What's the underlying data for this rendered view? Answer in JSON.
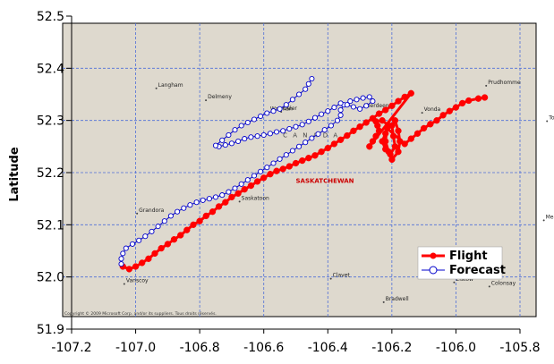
{
  "chart_data": {
    "type": "line",
    "title": "",
    "xlabel": "",
    "ylabel": "Latitude",
    "xlim": [
      -107.2,
      -105.8
    ],
    "ylim": [
      51.9,
      52.5
    ],
    "x_ticks": [
      "-107.2",
      "-107.0",
      "-106.8",
      "-106.6",
      "-106.4",
      "-106.2",
      "-106.0",
      "-105.8"
    ],
    "y_ticks": [
      "51.9",
      "52.0",
      "52.1",
      "52.2",
      "52.3",
      "52.4",
      "52.5"
    ],
    "x_tick_values": [
      -107.2,
      -107.0,
      -106.8,
      -106.6,
      -106.4,
      -106.2,
      -106.0,
      -105.8
    ],
    "y_tick_values": [
      51.9,
      52.0,
      52.1,
      52.2,
      52.3,
      52.4,
      52.5
    ],
    "grid": true,
    "legend_position": "bottom-right",
    "background": "map",
    "series": [
      {
        "name": "Flight",
        "color": "#ff0000",
        "marker": "filled-circle",
        "points": [
          [
            -107.04,
            52.02
          ],
          [
            -107.02,
            52.015
          ],
          [
            -107.0,
            52.02
          ],
          [
            -106.98,
            52.027
          ],
          [
            -106.96,
            52.035
          ],
          [
            -106.94,
            52.045
          ],
          [
            -106.92,
            52.055
          ],
          [
            -106.9,
            52.063
          ],
          [
            -106.88,
            52.072
          ],
          [
            -106.86,
            52.08
          ],
          [
            -106.84,
            52.09
          ],
          [
            -106.82,
            52.1
          ],
          [
            -106.8,
            52.107
          ],
          [
            -106.78,
            52.117
          ],
          [
            -106.76,
            52.125
          ],
          [
            -106.74,
            52.135
          ],
          [
            -106.72,
            52.143
          ],
          [
            -106.7,
            52.153
          ],
          [
            -106.68,
            52.16
          ],
          [
            -106.66,
            52.168
          ],
          [
            -106.64,
            52.175
          ],
          [
            -106.62,
            52.183
          ],
          [
            -106.6,
            52.19
          ],
          [
            -106.58,
            52.197
          ],
          [
            -106.56,
            52.203
          ],
          [
            -106.54,
            52.207
          ],
          [
            -106.52,
            52.212
          ],
          [
            -106.5,
            52.218
          ],
          [
            -106.48,
            52.223
          ],
          [
            -106.46,
            52.228
          ],
          [
            -106.44,
            52.233
          ],
          [
            -106.42,
            52.24
          ],
          [
            -106.4,
            52.247
          ],
          [
            -106.38,
            52.255
          ],
          [
            -106.36,
            52.263
          ],
          [
            -106.34,
            52.271
          ],
          [
            -106.32,
            52.28
          ],
          [
            -106.3,
            52.288
          ],
          [
            -106.28,
            52.296
          ],
          [
            -106.26,
            52.304
          ],
          [
            -106.24,
            52.313
          ],
          [
            -106.22,
            52.32
          ],
          [
            -106.2,
            52.328
          ],
          [
            -106.18,
            52.337
          ],
          [
            -106.16,
            52.345
          ],
          [
            -106.14,
            52.352
          ],
          [
            -106.27,
            52.25
          ],
          [
            -106.26,
            52.26
          ],
          [
            -106.25,
            52.27
          ],
          [
            -106.24,
            52.28
          ],
          [
            -106.245,
            52.29
          ],
          [
            -106.25,
            52.298
          ],
          [
            -106.23,
            52.3
          ],
          [
            -106.21,
            52.29
          ],
          [
            -106.22,
            52.275
          ],
          [
            -106.23,
            52.26
          ],
          [
            -106.22,
            52.245
          ],
          [
            -106.205,
            52.235
          ],
          [
            -106.19,
            52.25
          ],
          [
            -106.195,
            52.27
          ],
          [
            -106.2,
            52.29
          ],
          [
            -106.19,
            52.3
          ],
          [
            -106.18,
            52.28
          ],
          [
            -106.175,
            52.26
          ],
          [
            -106.18,
            52.24
          ],
          [
            -106.2,
            52.225
          ],
          [
            -106.21,
            52.24
          ],
          [
            -106.22,
            52.26
          ],
          [
            -106.215,
            52.285
          ],
          [
            -106.16,
            52.255
          ],
          [
            -106.14,
            52.265
          ],
          [
            -106.12,
            52.275
          ],
          [
            -106.1,
            52.285
          ],
          [
            -106.08,
            52.293
          ],
          [
            -106.06,
            52.3
          ],
          [
            -106.04,
            52.31
          ],
          [
            -106.02,
            52.318
          ],
          [
            -106.0,
            52.325
          ],
          [
            -105.98,
            52.333
          ],
          [
            -105.96,
            52.338
          ],
          [
            -105.93,
            52.342
          ],
          [
            -105.91,
            52.344
          ]
        ]
      },
      {
        "name": "Forecast",
        "color": "#0000cc",
        "marker": "open-circle",
        "points": [
          [
            -107.045,
            52.025
          ],
          [
            -107.045,
            52.035
          ],
          [
            -107.04,
            52.045
          ],
          [
            -107.03,
            52.055
          ],
          [
            -107.01,
            52.063
          ],
          [
            -106.99,
            52.07
          ],
          [
            -106.97,
            52.078
          ],
          [
            -106.95,
            52.087
          ],
          [
            -106.93,
            52.097
          ],
          [
            -106.91,
            52.107
          ],
          [
            -106.89,
            52.117
          ],
          [
            -106.87,
            52.125
          ],
          [
            -106.85,
            52.132
          ],
          [
            -106.83,
            52.138
          ],
          [
            -106.81,
            52.143
          ],
          [
            -106.79,
            52.147
          ],
          [
            -106.77,
            52.15
          ],
          [
            -106.75,
            52.153
          ],
          [
            -106.73,
            52.157
          ],
          [
            -106.71,
            52.163
          ],
          [
            -106.69,
            52.17
          ],
          [
            -106.67,
            52.178
          ],
          [
            -106.65,
            52.186
          ],
          [
            -106.63,
            52.194
          ],
          [
            -106.61,
            52.202
          ],
          [
            -106.59,
            52.21
          ],
          [
            -106.57,
            52.218
          ],
          [
            -106.55,
            52.226
          ],
          [
            -106.53,
            52.234
          ],
          [
            -106.51,
            52.242
          ],
          [
            -106.49,
            52.25
          ],
          [
            -106.47,
            52.258
          ],
          [
            -106.45,
            52.266
          ],
          [
            -106.43,
            52.274
          ],
          [
            -106.41,
            52.282
          ],
          [
            -106.39,
            52.29
          ],
          [
            -106.37,
            52.3
          ],
          [
            -106.36,
            52.31
          ],
          [
            -106.36,
            52.32
          ],
          [
            -106.35,
            52.33
          ],
          [
            -106.33,
            52.337
          ],
          [
            -106.31,
            52.34
          ],
          [
            -106.29,
            52.343
          ],
          [
            -106.27,
            52.345
          ],
          [
            -106.26,
            52.337
          ],
          [
            -106.28,
            52.328
          ],
          [
            -106.3,
            52.322
          ],
          [
            -106.32,
            52.326
          ],
          [
            -106.34,
            52.33
          ],
          [
            -106.36,
            52.333
          ],
          [
            -106.38,
            52.325
          ],
          [
            -106.4,
            52.318
          ],
          [
            -106.42,
            52.312
          ],
          [
            -106.44,
            52.305
          ],
          [
            -106.46,
            52.298
          ],
          [
            -106.48,
            52.292
          ],
          [
            -106.5,
            52.288
          ],
          [
            -106.52,
            52.284
          ],
          [
            -106.54,
            52.28
          ],
          [
            -106.56,
            52.278
          ],
          [
            -106.58,
            52.275
          ],
          [
            -106.6,
            52.272
          ],
          [
            -106.62,
            52.27
          ],
          [
            -106.64,
            52.268
          ],
          [
            -106.66,
            52.265
          ],
          [
            -106.68,
            52.26
          ],
          [
            -106.7,
            52.256
          ],
          [
            -106.72,
            52.253
          ],
          [
            -106.74,
            52.25
          ],
          [
            -106.75,
            52.252
          ],
          [
            -106.73,
            52.262
          ],
          [
            -106.71,
            52.272
          ],
          [
            -106.69,
            52.282
          ],
          [
            -106.67,
            52.29
          ],
          [
            -106.65,
            52.296
          ],
          [
            -106.63,
            52.302
          ],
          [
            -106.61,
            52.308
          ],
          [
            -106.59,
            52.314
          ],
          [
            -106.57,
            52.318
          ],
          [
            -106.55,
            52.322
          ],
          [
            -106.53,
            52.33
          ],
          [
            -106.51,
            52.34
          ],
          [
            -106.49,
            52.35
          ],
          [
            -106.47,
            52.36
          ],
          [
            -106.46,
            52.37
          ],
          [
            -106.45,
            52.38
          ]
        ]
      }
    ],
    "map_labels": [
      {
        "text": "Langham",
        "x": -106.93,
        "y": 52.365
      },
      {
        "text": "Delmeny",
        "x": -106.775,
        "y": 52.342
      },
      {
        "text": "Warman",
        "x": -106.58,
        "y": 52.319
      },
      {
        "text": "Osler",
        "x": -106.54,
        "y": 52.32
      },
      {
        "text": "Aberdeen",
        "x": -106.29,
        "y": 52.325
      },
      {
        "text": "Vonda",
        "x": -106.1,
        "y": 52.318
      },
      {
        "text": "Prudhomme",
        "x": -105.9,
        "y": 52.37
      },
      {
        "text": "Totzke",
        "x": -105.71,
        "y": 52.302
      },
      {
        "text": "Saskatoon",
        "x": -106.67,
        "y": 52.148
      },
      {
        "text": "Grandora",
        "x": -106.99,
        "y": 52.125
      },
      {
        "text": "Vanscoy",
        "x": -107.03,
        "y": 51.99
      },
      {
        "text": "Clavet",
        "x": -106.385,
        "y": 52.0
      },
      {
        "text": "Bradwell",
        "x": -106.22,
        "y": 51.955
      },
      {
        "text": "Elstow",
        "x": -106.0,
        "y": 51.993
      },
      {
        "text": "Colonsay",
        "x": -105.89,
        "y": 51.985
      },
      {
        "text": "Meacham",
        "x": -105.72,
        "y": 52.112
      }
    ],
    "region_labels": [
      {
        "text": "C A N A D A",
        "x": -106.54,
        "y": 52.268,
        "style": "gray"
      },
      {
        "text": "SASKATCHEWAN",
        "x": -106.5,
        "y": 52.18,
        "style": "red"
      }
    ],
    "copyright": "Copyright © 2009 Microsoft Corp. and/or its suppliers. Tous droits réservés."
  }
}
